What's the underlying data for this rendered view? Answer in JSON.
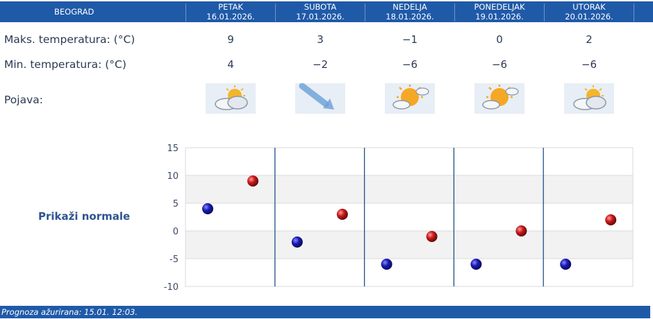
{
  "header": {
    "city": "BEOGRAD",
    "days": [
      {
        "day": "PETAK",
        "date": "16.01.2026."
      },
      {
        "day": "SUBOTA",
        "date": "17.01.2026."
      },
      {
        "day": "NEDELJA",
        "date": "18.01.2026."
      },
      {
        "day": "PONEDELJAK",
        "date": "19.01.2026."
      },
      {
        "day": "UTORAK",
        "date": "20.01.2026."
      }
    ]
  },
  "rows": {
    "max_label": "Maks. temperatura: (°C)",
    "min_label": "Min. temperatura: (°C)",
    "weather_label": "Pojava:",
    "max_values": [
      "9",
      "3",
      "−1",
      "0",
      "2"
    ],
    "min_values": [
      "4",
      "−2",
      "−6",
      "−6",
      "−6"
    ],
    "weather_icons": [
      "partly-cloudy-icon",
      "wind-icon",
      "mostly-sunny-icon",
      "mostly-sunny-icon",
      "partly-cloudy-icon"
    ]
  },
  "normals_link": "Prikaži normale",
  "footer": {
    "text": "Prognoza ažurirana:  15.01. 12:03."
  },
  "colors": {
    "header_bg": "#1f5aa8",
    "max_point": "#c81a1a",
    "min_point": "#1a1ab4",
    "band": "#f2f2f2",
    "divider": "#1f4f8a"
  },
  "chart_data": {
    "type": "scatter",
    "categories": [
      "16.01.2026.",
      "17.01.2026.",
      "18.01.2026.",
      "19.01.2026.",
      "20.01.2026."
    ],
    "series": [
      {
        "values": [
          4,
          -2,
          -6,
          -6,
          -6
        ]
      },
      {
        "values": [
          9,
          3,
          -1,
          0,
          2
        ]
      }
    ],
    "yticks": [
      "15",
      "10",
      "5",
      "0",
      "-5",
      "-10"
    ],
    "ylim": [
      -10,
      15
    ],
    "title": "",
    "xlabel": "",
    "ylabel": ""
  }
}
